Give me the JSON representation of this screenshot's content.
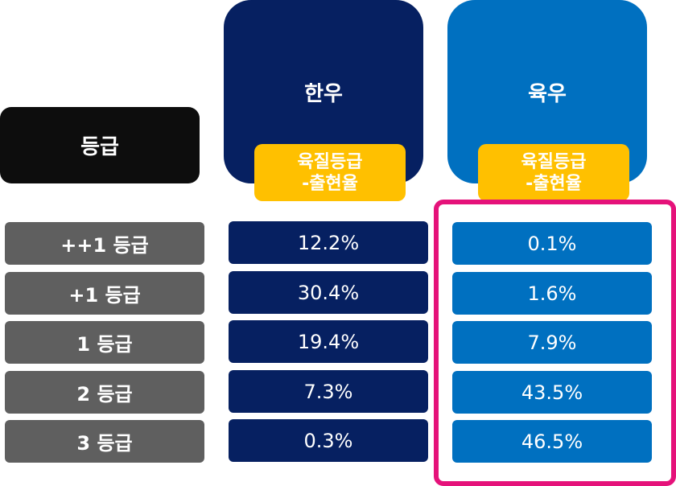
{
  "header": {
    "grade_label": "등급",
    "columns": [
      {
        "title": "한우",
        "sub_label": "육질등급\n-출현율"
      },
      {
        "title": "육우",
        "sub_label": "육질등급\n-출현율"
      }
    ]
  },
  "rows": [
    {
      "grade": "++1 등급",
      "hanwoo": "12.2%",
      "yukwoo": "0.1%"
    },
    {
      "grade": "+1 등급",
      "hanwoo": "30.4%",
      "yukwoo": "1.6%"
    },
    {
      "grade": "1 등급",
      "hanwoo": "19.4%",
      "yukwoo": "7.9%"
    },
    {
      "grade": "2 등급",
      "hanwoo": "7.3%",
      "yukwoo": "43.5%"
    },
    {
      "grade": "3 등급",
      "hanwoo": "0.3%",
      "yukwoo": "46.5%"
    }
  ],
  "colors": {
    "hanwoo": "#062061",
    "yukwoo": "#0070c0",
    "sub_label": "#ffc000",
    "grade_label": "#5f5f5f",
    "highlight": "#e5127a"
  }
}
